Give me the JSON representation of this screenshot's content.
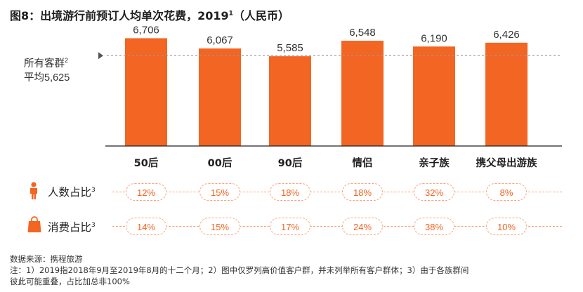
{
  "title": {
    "text": "图8：出境游行前预订人均单次花费，2019",
    "footnote_mark": "1",
    "suffix": "（人民币）"
  },
  "reference": {
    "line1": "所有客群",
    "line1_mark": "2",
    "line2": "平均5,625"
  },
  "rows": {
    "people_label": "人数占比",
    "people_mark": "3",
    "spend_label": "消费占比",
    "spend_mark": "3"
  },
  "footer": {
    "source": "数据来源：携程旅游",
    "note1": "注：1）2019指2018年9月至2019年8月的十二个月；2）图中仅罗列高价值客户群，并未列举所有客户群体；3）由于各族群间",
    "note2": "彼此可能重叠，占比加总非100%"
  },
  "colors": {
    "bar": "#f26522",
    "pill_border": "#f7a47a",
    "pill_text": "#f26522",
    "average_line": "#9a9a9a"
  },
  "chart_data": {
    "type": "bar",
    "title": "出境游行前预订人均单次花费，2019（人民币）",
    "categories": [
      "50后",
      "00后",
      "90后",
      "情侣",
      "亲子族",
      "携父母出游族"
    ],
    "values": [
      6706,
      6067,
      5585,
      6548,
      6190,
      6426
    ],
    "value_labels": [
      "6,706",
      "6,067",
      "5,585",
      "6,548",
      "6,190",
      "6,426"
    ],
    "average": 5625,
    "ylim": [
      0,
      6900
    ],
    "xlabel": "",
    "ylabel": "",
    "people_share": [
      "12%",
      "15%",
      "18%",
      "18%",
      "32%",
      "8%"
    ],
    "spend_share": [
      "14%",
      "15%",
      "17%",
      "24%",
      "38%",
      "10%"
    ]
  }
}
